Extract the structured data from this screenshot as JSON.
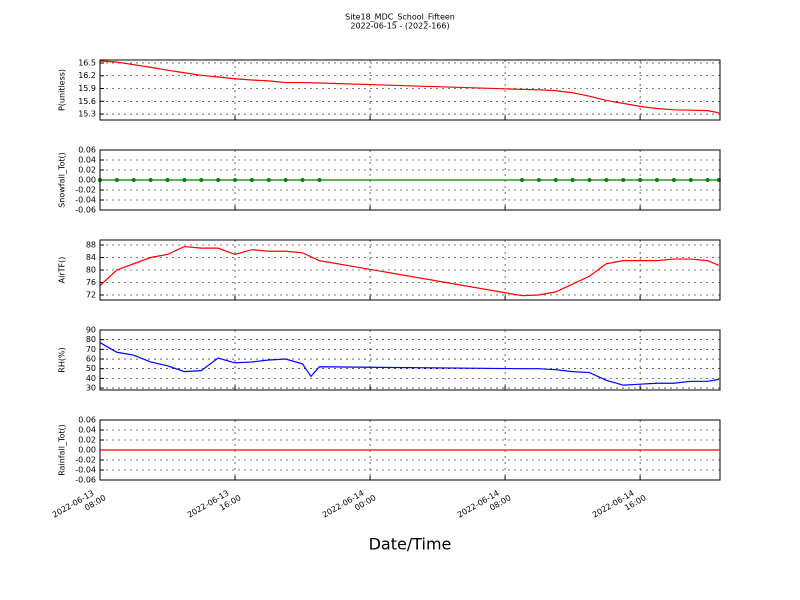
{
  "chart_data": [
    {
      "type": "line",
      "title": "Site18_MDC_School_Fifteen",
      "subtitle": "2022-06-15 - (2022-166)",
      "ylabel": "P(unitless)",
      "color": "#ff0000",
      "grid": true,
      "x": [
        "2022-06-13 08:00",
        "2022-06-13 09:00",
        "2022-06-13 10:00",
        "2022-06-13 11:00",
        "2022-06-13 12:00",
        "2022-06-13 13:00",
        "2022-06-13 14:00",
        "2022-06-13 15:00",
        "2022-06-13 16:00",
        "2022-06-13 17:00",
        "2022-06-13 18:00",
        "2022-06-13 19:00",
        "2022-06-13 20:00",
        "2022-06-13 21:00",
        "2022-06-14 09:00",
        "2022-06-14 10:00",
        "2022-06-14 11:00",
        "2022-06-14 12:00",
        "2022-06-14 13:00",
        "2022-06-14 14:00",
        "2022-06-14 15:00",
        "2022-06-14 16:00",
        "2022-06-14 17:00",
        "2022-06-14 18:00",
        "2022-06-14 19:00",
        "2022-06-14 20:00",
        "2022-06-14 20:40"
      ],
      "values": [
        16.55,
        16.52,
        16.46,
        16.4,
        16.33,
        16.27,
        16.21,
        16.17,
        16.13,
        16.1,
        16.08,
        16.04,
        16.04,
        16.03,
        15.88,
        15.87,
        15.85,
        15.8,
        15.72,
        15.62,
        15.55,
        15.48,
        15.43,
        15.4,
        15.39,
        15.38,
        15.33
      ],
      "xlim": [
        "2022-06-13 08:00",
        "2022-06-14 20:44"
      ],
      "ylim": [
        15.16,
        16.57
      ],
      "yticks": [
        {
          "value": 15.3,
          "label": "15.3"
        },
        15.6,
        15.9,
        16.2,
        16.5
      ]
    },
    {
      "type": "line",
      "ylabel": "Snowfall_Tot()",
      "color": "#008000",
      "marker": "o",
      "grid": true,
      "x": [
        "2022-06-13 08:00",
        "2022-06-13 09:00",
        "2022-06-13 10:00",
        "2022-06-13 11:00",
        "2022-06-13 12:00",
        "2022-06-13 13:00",
        "2022-06-13 14:00",
        "2022-06-13 15:00",
        "2022-06-13 16:00",
        "2022-06-13 17:00",
        "2022-06-13 18:00",
        "2022-06-13 19:00",
        "2022-06-13 20:00",
        "2022-06-13 21:00",
        "2022-06-14 09:00",
        "2022-06-14 10:00",
        "2022-06-14 11:00",
        "2022-06-14 12:00",
        "2022-06-14 13:00",
        "2022-06-14 14:00",
        "2022-06-14 15:00",
        "2022-06-14 16:00",
        "2022-06-14 17:00",
        "2022-06-14 18:00",
        "2022-06-14 19:00",
        "2022-06-14 20:00",
        "2022-06-14 20:40"
      ],
      "values": [
        0,
        0,
        0,
        0,
        0,
        0,
        0,
        0,
        0,
        0,
        0,
        0,
        0,
        0,
        0,
        0,
        0,
        0,
        0,
        0,
        0,
        0,
        0,
        0,
        0,
        0,
        0
      ],
      "xlim": [
        "2022-06-13 08:00",
        "2022-06-14 20:44"
      ],
      "ylim": [
        -0.06,
        0.06
      ],
      "yticks": [
        -0.06,
        -0.04,
        -0.02,
        {
          "value": 0,
          "label": "0.00"
        },
        0.02,
        0.04,
        0.06
      ]
    },
    {
      "type": "line",
      "ylabel": "AirTF()",
      "color": "#ff0000",
      "grid": true,
      "x": [
        "2022-06-13 08:00",
        "2022-06-13 09:00",
        "2022-06-13 10:00",
        "2022-06-13 11:00",
        "2022-06-13 12:00",
        "2022-06-13 13:00",
        "2022-06-13 14:00",
        "2022-06-13 15:00",
        "2022-06-13 16:00",
        "2022-06-13 17:00",
        "2022-06-13 18:00",
        "2022-06-13 19:00",
        "2022-06-13 20:00",
        "2022-06-13 21:00",
        "2022-06-14 09:00",
        "2022-06-14 10:00",
        "2022-06-14 11:00",
        "2022-06-14 12:00",
        "2022-06-14 13:00",
        "2022-06-14 14:00",
        "2022-06-14 15:00",
        "2022-06-14 16:00",
        "2022-06-14 17:00",
        "2022-06-14 18:00",
        "2022-06-14 19:00",
        "2022-06-14 20:00",
        "2022-06-14 20:40"
      ],
      "values": [
        75,
        80,
        82,
        84,
        85,
        87.5,
        87,
        87,
        85,
        86.5,
        86,
        86,
        85.5,
        83,
        71.8,
        72,
        73,
        75.5,
        78,
        82,
        83,
        83,
        83,
        83.5,
        83.5,
        83,
        81.5
      ],
      "xlim": [
        "2022-06-13 08:00",
        "2022-06-14 20:44"
      ],
      "ylim": [
        70.4,
        89.6
      ],
      "yticks": [
        72,
        76,
        80,
        84,
        88
      ]
    },
    {
      "type": "line",
      "ylabel": "RH(%)",
      "color": "#0000ff",
      "grid": true,
      "x": [
        "2022-06-13 08:00",
        "2022-06-13 09:00",
        "2022-06-13 10:00",
        "2022-06-13 11:00",
        "2022-06-13 12:00",
        "2022-06-13 13:00",
        "2022-06-13 14:00",
        "2022-06-13 15:00",
        "2022-06-13 16:00",
        "2022-06-13 17:00",
        "2022-06-13 18:00",
        "2022-06-13 19:00",
        "2022-06-13 20:00",
        "2022-06-13 20:30",
        "2022-06-13 21:00",
        "2022-06-14 09:00",
        "2022-06-14 10:00",
        "2022-06-14 11:00",
        "2022-06-14 12:00",
        "2022-06-14 13:00",
        "2022-06-14 14:00",
        "2022-06-14 15:00",
        "2022-06-14 16:00",
        "2022-06-14 17:00",
        "2022-06-14 18:00",
        "2022-06-14 19:00",
        "2022-06-14 20:00",
        "2022-06-14 20:40"
      ],
      "values": [
        77,
        67,
        64,
        57,
        53,
        47,
        48,
        61,
        56,
        57,
        59,
        60,
        55,
        42,
        52,
        50,
        50,
        49,
        47,
        46,
        38,
        33,
        34,
        35,
        35,
        37,
        37,
        39
      ],
      "xlim": [
        "2022-06-13 08:00",
        "2022-06-14 20:44"
      ],
      "ylim": [
        28,
        90
      ],
      "yticks": [
        30,
        40,
        50,
        60,
        70,
        80,
        90
      ]
    },
    {
      "type": "line",
      "ylabel": "Rainfall_Tot()",
      "xlabel": "Date/Time",
      "color": "#ff0000",
      "grid": true,
      "x": [
        "2022-06-13 08:00",
        "2022-06-13 21:00",
        "2022-06-14 09:00",
        "2022-06-14 20:40"
      ],
      "values": [
        0,
        0,
        0,
        0
      ],
      "xlim": [
        "2022-06-13 08:00",
        "2022-06-14 20:44"
      ],
      "ylim": [
        -0.06,
        0.06
      ],
      "yticks": [
        -0.06,
        -0.04,
        -0.02,
        {
          "value": 0,
          "label": "0.00"
        },
        0.02,
        0.04,
        0.06
      ],
      "xticks": [
        "2022-06-13 08:00",
        "2022-06-13 16:00",
        "2022-06-14 00:00",
        "2022-06-14 08:00",
        "2022-06-14 16:00"
      ]
    }
  ]
}
